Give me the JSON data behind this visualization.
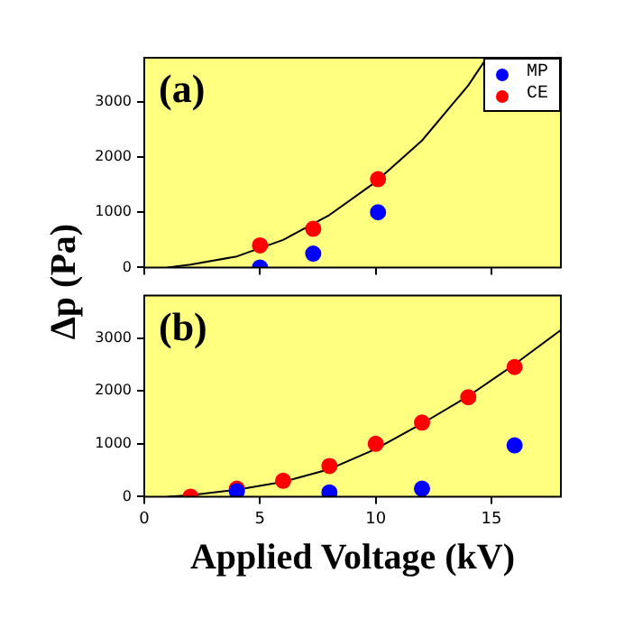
{
  "chart_data": [
    {
      "type": "scatter",
      "ylabel": "Δp (Pa)",
      "annotations": [
        "(a)"
      ],
      "xlim": [
        0,
        18
      ],
      "xticks": [
        0,
        5,
        10,
        15
      ],
      "ylim": [
        0,
        3800
      ],
      "yticks": [
        0,
        1000,
        2000,
        3000
      ],
      "tick_labels": "y",
      "legend": "top right",
      "series": [
        {
          "name": "MP",
          "color": "#0000ff",
          "marker": "circle",
          "x": [
            5,
            7.3,
            10.1
          ],
          "values": [
            0,
            250,
            1000
          ]
        },
        {
          "name": "CE",
          "color": "#ff0000",
          "marker": "circle",
          "x": [
            5,
            7.3,
            10.1
          ],
          "values": [
            400,
            700,
            1600
          ]
        },
        {
          "type": "line",
          "color": "#000000",
          "marker": "none",
          "x": [
            1,
            2,
            4,
            6,
            8,
            10,
            12,
            13.4,
            14,
            14.8
          ],
          "values": [
            0,
            50,
            200,
            500,
            950,
            1550,
            2300,
            3000,
            3300,
            3800
          ]
        }
      ]
    },
    {
      "type": "scatter",
      "xlabel": "Applied Voltage (kV)",
      "annotations": [
        "(b)"
      ],
      "xlim": [
        0,
        18
      ],
      "xticks": [
        0,
        5,
        10,
        15
      ],
      "ylim": [
        0,
        3800
      ],
      "yticks": [
        0,
        1000,
        2000,
        3000
      ],
      "series": [
        {
          "color": "#0000ff",
          "marker": "circle",
          "x": [
            4,
            8,
            12,
            16
          ],
          "values": [
            100,
            80,
            150,
            970
          ]
        },
        {
          "color": "#ff0000",
          "marker": "circle",
          "x": [
            2,
            4,
            6,
            8,
            10,
            12,
            14,
            16
          ],
          "values": [
            0,
            150,
            300,
            580,
            1000,
            1400,
            1880,
            2450
          ]
        },
        {
          "type": "line",
          "color": "#000000",
          "marker": "none",
          "x": [
            1,
            2,
            4,
            6,
            8,
            10,
            12,
            14,
            16,
            18
          ],
          "values": [
            0,
            30,
            130,
            280,
            520,
            900,
            1380,
            1900,
            2500,
            3150
          ]
        }
      ]
    }
  ]
}
